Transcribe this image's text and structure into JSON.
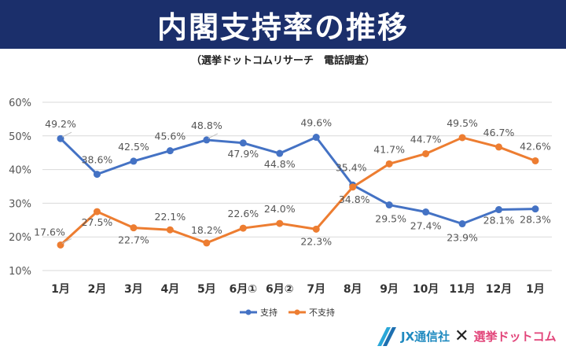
{
  "header": {
    "title": "内閣支持率の推移",
    "subtitle": "（選挙ドットコムリサーチ　電話調査）"
  },
  "logo": {
    "company": "JX通信社",
    "separator": "✕",
    "brand": "選挙ドットコム"
  },
  "chart_data": {
    "type": "line",
    "title": "内閣支持率の推移",
    "categories": [
      "1月",
      "2月",
      "3月",
      "4月",
      "5月",
      "6月①",
      "6月②",
      "7月",
      "8月",
      "9月",
      "10月",
      "11月",
      "12月",
      "1月"
    ],
    "y_ticks": [
      "10%",
      "20%",
      "30%",
      "40%",
      "50%",
      "60%"
    ],
    "ylim": [
      10,
      60
    ],
    "grid": true,
    "legend_position": "bottom",
    "series": [
      {
        "name": "支持",
        "color": "#4472c4",
        "values": [
          49.2,
          38.6,
          42.5,
          45.6,
          48.8,
          47.9,
          44.8,
          49.6,
          35.4,
          29.5,
          27.4,
          23.9,
          28.1,
          28.3
        ],
        "labels": [
          "49.2%",
          "38.6%",
          "42.5%",
          "45.6%",
          "48.8%",
          "47.9%",
          "44.8%",
          "49.6%",
          "35.4%",
          "29.5%",
          "27.4%",
          "23.9%",
          "28.1%",
          "28.3%"
        ]
      },
      {
        "name": "不支持",
        "color": "#ed7d31",
        "values": [
          17.6,
          27.5,
          22.7,
          22.1,
          18.2,
          22.6,
          24.0,
          22.3,
          34.8,
          41.7,
          44.7,
          49.5,
          46.7,
          42.6
        ],
        "labels": [
          "17.6%",
          "27.5%",
          "22.7%",
          "22.1%",
          "18.2%",
          "22.6%",
          "24.0%",
          "22.3%",
          "34.8%",
          "41.7%",
          "44.7%",
          "49.5%",
          "46.7%",
          "42.6%"
        ]
      }
    ]
  }
}
